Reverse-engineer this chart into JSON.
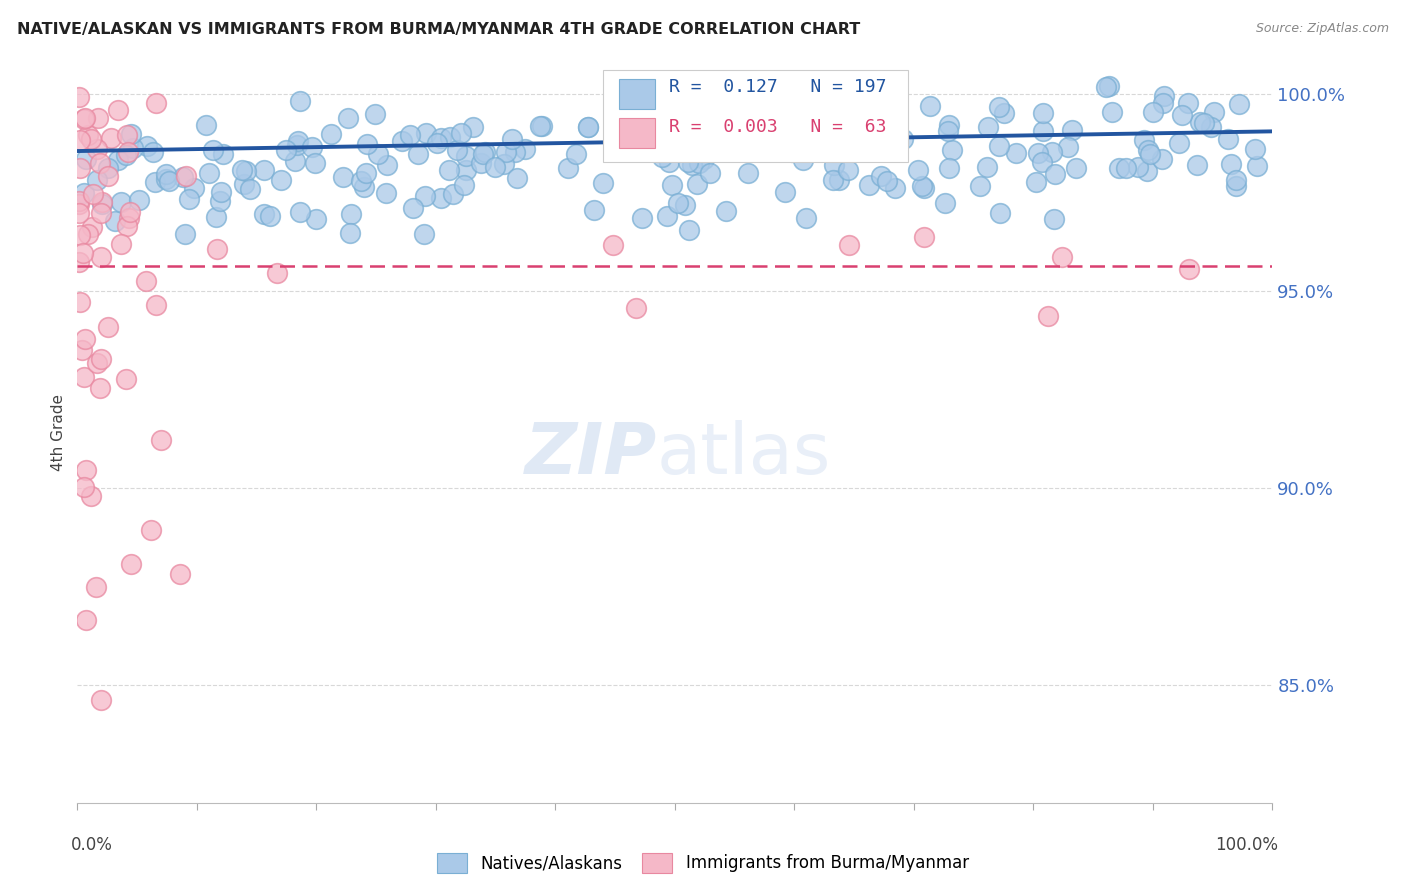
{
  "title": "NATIVE/ALASKAN VS IMMIGRANTS FROM BURMA/MYANMAR 4TH GRADE CORRELATION CHART",
  "source": "Source: ZipAtlas.com",
  "ylabel": "4th Grade",
  "blue_R": 0.127,
  "blue_N": 197,
  "pink_R": 0.003,
  "pink_N": 63,
  "legend_label_blue": "Natives/Alaskans",
  "legend_label_pink": "Immigrants from Burma/Myanmar",
  "xlim": [
    0.0,
    1.0
  ],
  "ylim": [
    0.82,
    1.008
  ],
  "yticks": [
    0.85,
    0.9,
    0.95,
    1.0
  ],
  "ytick_labels": [
    "85.0%",
    "90.0%",
    "95.0%",
    "100.0%"
  ],
  "blue_color": "#aac9e8",
  "blue_edge_color": "#7aafd4",
  "blue_line_color": "#2255a0",
  "pink_color": "#f5b8c8",
  "pink_edge_color": "#e888a0",
  "pink_line_color": "#d94070",
  "background_color": "#ffffff",
  "grid_color": "#d8d8d8",
  "title_color": "#222222",
  "source_color": "#888888",
  "ylabel_color": "#444444",
  "ytick_color": "#4472c4",
  "xlabel_color": "#444444"
}
